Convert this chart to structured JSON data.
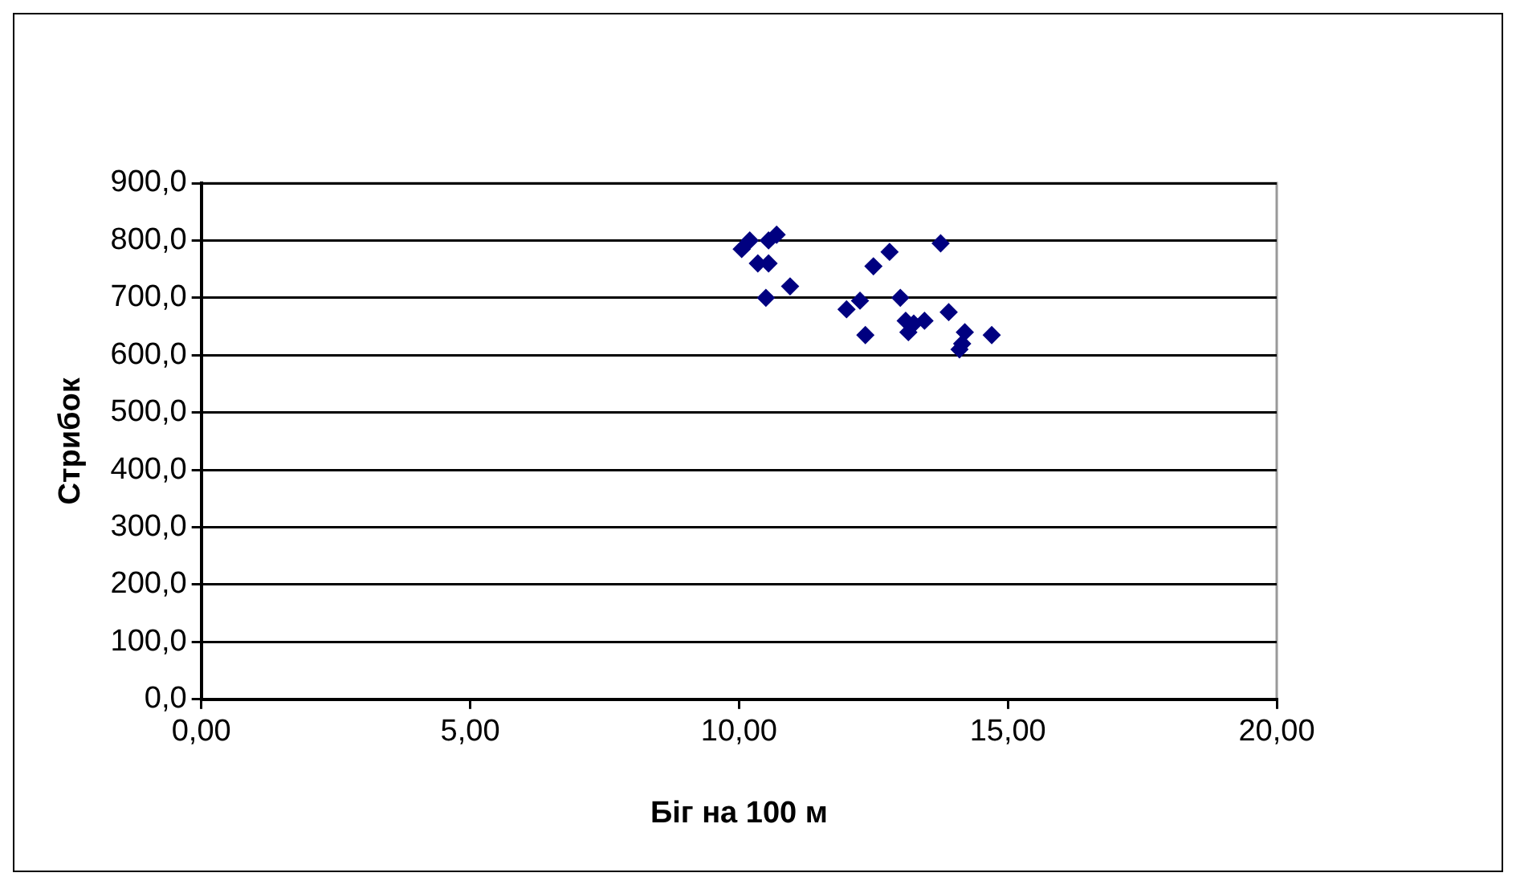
{
  "chart_data": {
    "type": "scatter",
    "xlabel": "Біг на 100 м",
    "ylabel": "Стрибок",
    "series": [
      {
        "color": "#000080",
        "x": [
          10.05,
          10.2,
          10.35,
          10.55,
          10.5,
          10.55,
          10.7,
          10.95,
          12.0,
          12.25,
          12.35,
          12.5,
          12.8,
          13.0,
          13.1,
          13.15,
          13.25,
          13.45,
          13.75,
          13.9,
          14.2,
          14.1,
          14.15,
          14.7
        ],
        "values": [
          785,
          800,
          760,
          760,
          700,
          800,
          810,
          720,
          680,
          695,
          635,
          755,
          780,
          700,
          660,
          640,
          655,
          660,
          795,
          675,
          640,
          610,
          620,
          635
        ]
      }
    ],
    "xlim": [
      0,
      20
    ],
    "ylim": [
      0,
      900
    ],
    "xticks": [
      {
        "value": 0,
        "label": "0,00"
      },
      {
        "value": 5,
        "label": "5,00"
      },
      {
        "value": 10,
        "label": "10,00"
      },
      {
        "value": 15,
        "label": "15,00"
      },
      {
        "value": 20,
        "label": "20,00"
      }
    ],
    "yticks": [
      {
        "value": 0,
        "label": "0,0"
      },
      {
        "value": 100,
        "label": "100,0"
      },
      {
        "value": 200,
        "label": "200,0"
      },
      {
        "value": 300,
        "label": "300,0"
      },
      {
        "value": 400,
        "label": "400,0"
      },
      {
        "value": 500,
        "label": "500,0"
      },
      {
        "value": 600,
        "label": "600,0"
      },
      {
        "value": 700,
        "label": "700,0"
      },
      {
        "value": 800,
        "label": "800,0"
      },
      {
        "value": 900,
        "label": "900,0"
      }
    ],
    "grid": "y",
    "legend": false,
    "marker": "diamond"
  }
}
